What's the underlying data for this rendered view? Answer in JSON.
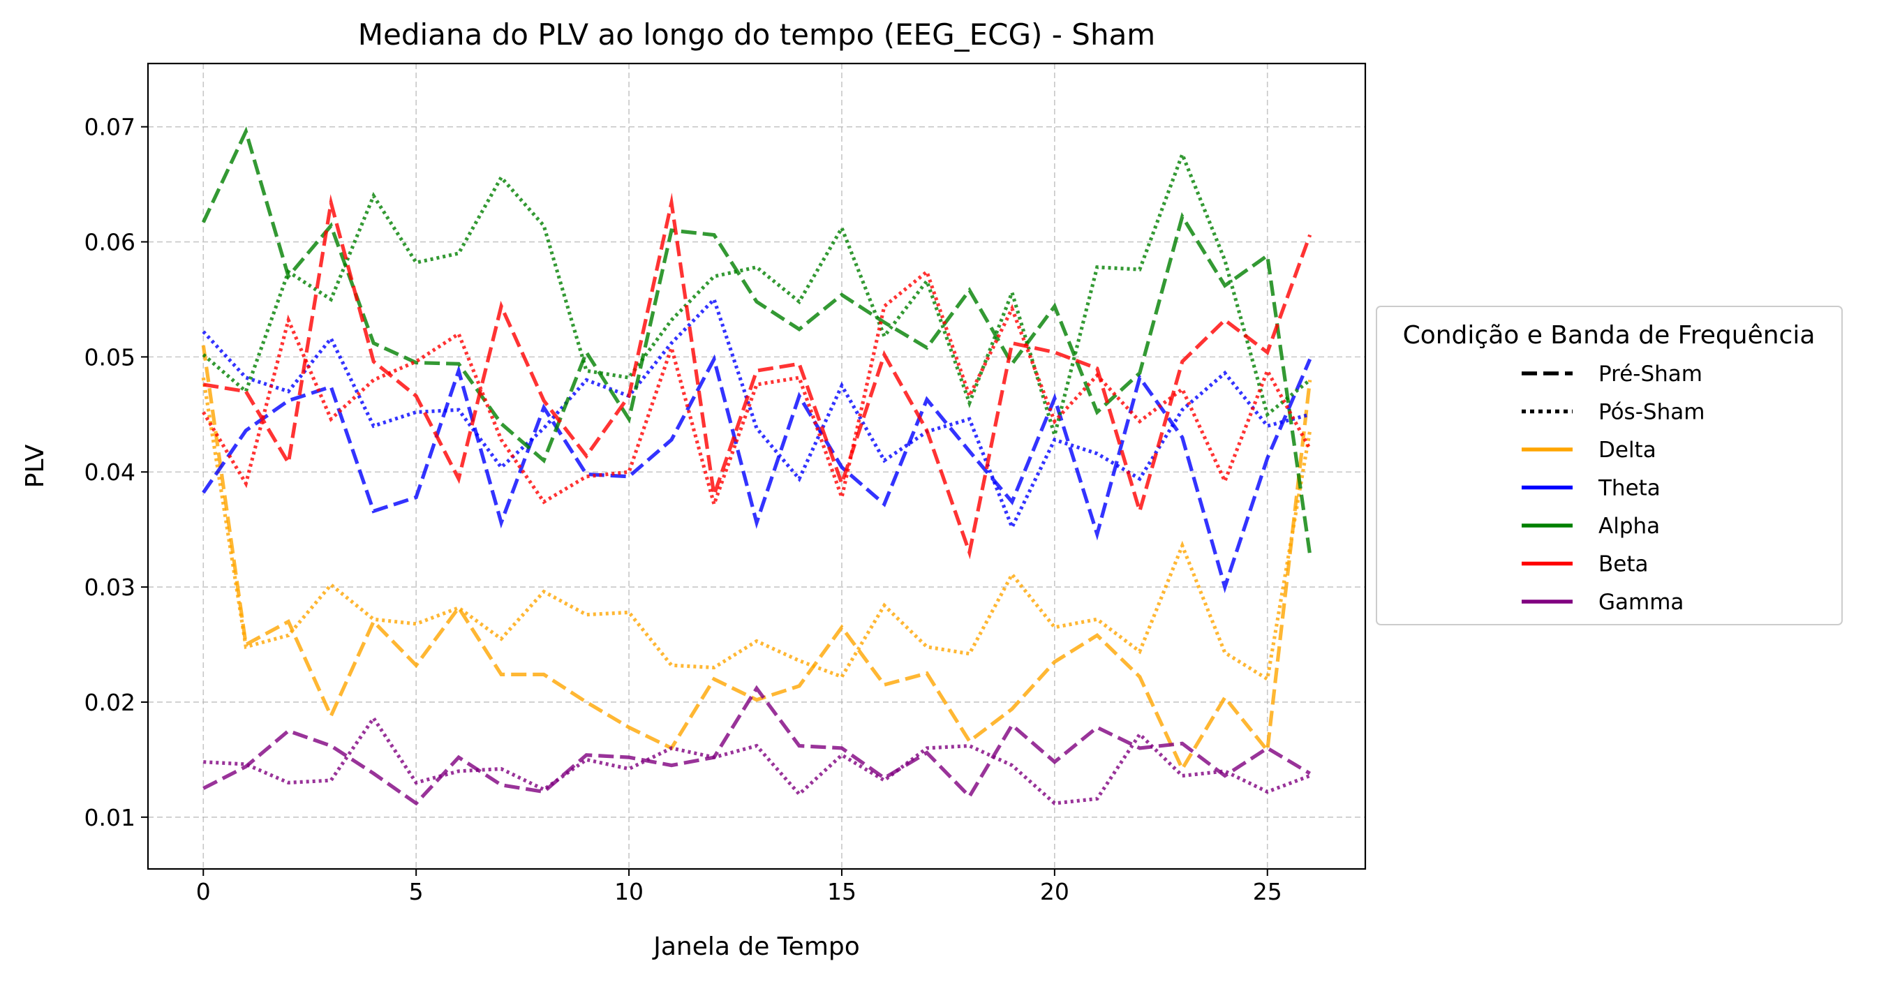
{
  "chart_data": {
    "type": "line",
    "title": "Mediana do PLV ao longo do tempo (EEG_ECG) - Sham",
    "xlabel": "Janela de Tempo",
    "ylabel": "PLV",
    "xlim": [
      -1.3,
      27.3
    ],
    "ylim": [
      0.0055,
      0.0755
    ],
    "xticks": [
      0,
      5,
      10,
      15,
      20,
      25
    ],
    "xtick_labels": [
      "0",
      "5",
      "10",
      "15",
      "20",
      "25"
    ],
    "yticks": [
      0.01,
      0.02,
      0.03,
      0.04,
      0.05,
      0.06,
      0.07
    ],
    "ytick_labels": [
      "0.01",
      "0.02",
      "0.03",
      "0.04",
      "0.05",
      "0.06",
      "0.07"
    ],
    "grid": true,
    "legend": {
      "title": "Condição e Banda de Frequência",
      "placement": "center-right outside",
      "entries": [
        {
          "label": "Pré-Sham",
          "color": "#000000",
          "style": "dashed"
        },
        {
          "label": "Pós-Sham",
          "color": "#000000",
          "style": "dotted"
        },
        {
          "label": "Delta",
          "color": "#FFA500",
          "style": "solid"
        },
        {
          "label": "Theta",
          "color": "#0000FF",
          "style": "solid"
        },
        {
          "label": "Alpha",
          "color": "#008000",
          "style": "solid"
        },
        {
          "label": "Beta",
          "color": "#FF0000",
          "style": "solid"
        },
        {
          "label": "Gamma",
          "color": "#800080",
          "style": "solid"
        }
      ]
    },
    "x": [
      0,
      1,
      2,
      3,
      4,
      5,
      6,
      7,
      8,
      9,
      10,
      11,
      12,
      13,
      14,
      15,
      16,
      17,
      18,
      19,
      20,
      21,
      22,
      23,
      24,
      25,
      26
    ],
    "series": [
      {
        "band": "Delta",
        "condition": "Pré-Sham",
        "color": "#FFA500",
        "style": "dashed",
        "values": [
          0.051,
          0.025,
          0.027,
          0.0188,
          0.027,
          0.0232,
          0.0282,
          0.0224,
          0.0224,
          0.02,
          0.0178,
          0.016,
          0.022,
          0.0202,
          0.0214,
          0.0265,
          0.0215,
          0.0225,
          0.0166,
          0.0194,
          0.0235,
          0.0258,
          0.0222,
          0.0142,
          0.0204,
          0.0158,
          0.048
        ]
      },
      {
        "band": "Delta",
        "condition": "Pós-Sham",
        "color": "#FFA500",
        "style": "dotted",
        "values": [
          0.0482,
          0.0248,
          0.0258,
          0.0302,
          0.0272,
          0.0268,
          0.0282,
          0.0255,
          0.0296,
          0.0276,
          0.0278,
          0.0232,
          0.023,
          0.0253,
          0.0236,
          0.0222,
          0.0284,
          0.0248,
          0.0242,
          0.0311,
          0.0265,
          0.0272,
          0.0244,
          0.0336,
          0.0243,
          0.022,
          0.0436
        ]
      },
      {
        "band": "Theta",
        "condition": "Pré-Sham",
        "color": "#0000FF",
        "style": "dashed",
        "values": [
          0.0382,
          0.0436,
          0.0462,
          0.0474,
          0.0366,
          0.0378,
          0.0488,
          0.0356,
          0.0456,
          0.0398,
          0.0396,
          0.0428,
          0.0498,
          0.0356,
          0.0466,
          0.0404,
          0.0372,
          0.0463,
          0.0418,
          0.0374,
          0.0464,
          0.0346,
          0.0482,
          0.043,
          0.03,
          0.0412,
          0.0498
        ]
      },
      {
        "band": "Theta",
        "condition": "Pós-Sham",
        "color": "#0000FF",
        "style": "dotted",
        "values": [
          0.0522,
          0.0482,
          0.047,
          0.0516,
          0.044,
          0.0452,
          0.0454,
          0.0404,
          0.0438,
          0.048,
          0.0466,
          0.0512,
          0.055,
          0.0438,
          0.0394,
          0.0475,
          0.041,
          0.0435,
          0.0446,
          0.0352,
          0.0428,
          0.0416,
          0.0394,
          0.0454,
          0.0486,
          0.044,
          0.045
        ]
      },
      {
        "band": "Alpha",
        "condition": "Pré-Sham",
        "color": "#008000",
        "style": "dashed",
        "values": [
          0.0617,
          0.0696,
          0.057,
          0.0614,
          0.0512,
          0.0495,
          0.0494,
          0.0442,
          0.041,
          0.0504,
          0.0446,
          0.061,
          0.0606,
          0.0548,
          0.0524,
          0.0554,
          0.053,
          0.0508,
          0.0558,
          0.0494,
          0.0544,
          0.0452,
          0.0486,
          0.0622,
          0.0562,
          0.0588,
          0.0328
        ]
      },
      {
        "band": "Alpha",
        "condition": "Pós-Sham",
        "color": "#008000",
        "style": "dotted",
        "values": [
          0.0502,
          0.047,
          0.0574,
          0.055,
          0.064,
          0.0582,
          0.059,
          0.0656,
          0.0614,
          0.0488,
          0.0482,
          0.0532,
          0.057,
          0.0578,
          0.0548,
          0.0612,
          0.0518,
          0.0566,
          0.046,
          0.0556,
          0.0432,
          0.0578,
          0.0576,
          0.0676,
          0.0584,
          0.045,
          0.048
        ]
      },
      {
        "band": "Beta",
        "condition": "Pré-Sham",
        "color": "#FF0000",
        "style": "dashed",
        "values": [
          0.0476,
          0.047,
          0.0408,
          0.0634,
          0.0496,
          0.0466,
          0.0394,
          0.0544,
          0.0462,
          0.0414,
          0.0466,
          0.0634,
          0.038,
          0.0488,
          0.0494,
          0.039,
          0.0502,
          0.0436,
          0.033,
          0.0512,
          0.0504,
          0.049,
          0.0366,
          0.0496,
          0.0532,
          0.0504,
          0.0606
        ]
      },
      {
        "band": "Beta",
        "condition": "Pós-Sham",
        "color": "#FF0000",
        "style": "dotted",
        "values": [
          0.0452,
          0.039,
          0.0532,
          0.0446,
          0.048,
          0.0496,
          0.052,
          0.0428,
          0.0374,
          0.0396,
          0.04,
          0.0508,
          0.0372,
          0.0476,
          0.0482,
          0.0378,
          0.0544,
          0.0574,
          0.0466,
          0.0542,
          0.0444,
          0.0484,
          0.0444,
          0.0472,
          0.0392,
          0.0488,
          0.042
        ]
      },
      {
        "band": "Gamma",
        "condition": "Pré-Sham",
        "color": "#800080",
        "style": "dashed",
        "values": [
          0.0125,
          0.0144,
          0.0175,
          0.0162,
          0.0138,
          0.0112,
          0.0152,
          0.0128,
          0.0122,
          0.0154,
          0.0152,
          0.0145,
          0.0152,
          0.0212,
          0.0162,
          0.016,
          0.0134,
          0.0156,
          0.0118,
          0.018,
          0.0148,
          0.0178,
          0.016,
          0.0164,
          0.0136,
          0.016,
          0.0138
        ]
      },
      {
        "band": "Gamma",
        "condition": "Pós-Sham",
        "color": "#800080",
        "style": "dotted",
        "values": [
          0.0148,
          0.0146,
          0.013,
          0.0132,
          0.0186,
          0.013,
          0.014,
          0.0142,
          0.0124,
          0.015,
          0.0142,
          0.016,
          0.0152,
          0.0162,
          0.012,
          0.0154,
          0.0132,
          0.016,
          0.0162,
          0.0145,
          0.0112,
          0.0116,
          0.0172,
          0.0136,
          0.014,
          0.0122,
          0.0136
        ]
      }
    ]
  }
}
